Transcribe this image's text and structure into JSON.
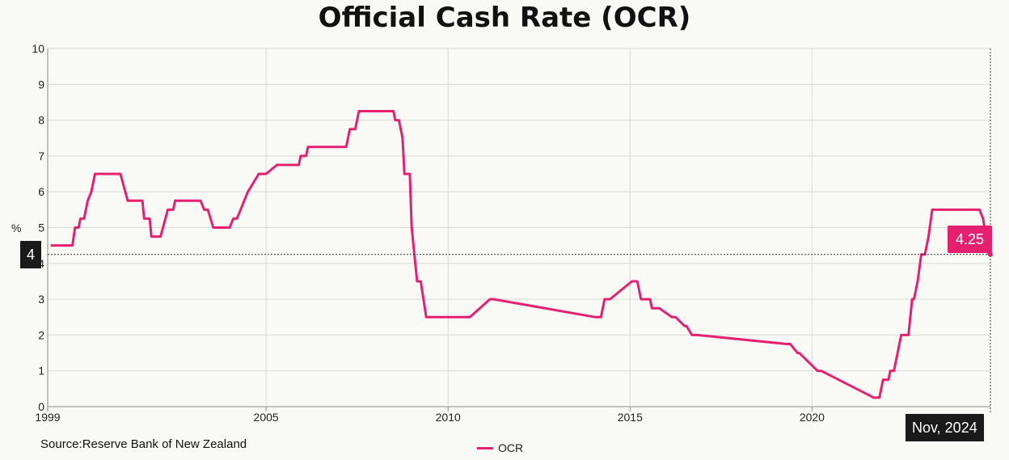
{
  "title": "Official Cash Rate (OCR)",
  "source": "Source:Reserve Bank of New Zealand",
  "colors": {
    "series": "#e4206f",
    "grid": "#d9d9d9",
    "axis": "#888888",
    "tooltip_bg": "#1a1a1a"
  },
  "crosshair": {
    "y_label": "4",
    "x_label": "Nov, 2024",
    "value_label": "4.25",
    "value": 4.25
  },
  "chart_data": {
    "type": "line",
    "title": "Official Cash Rate (OCR)",
    "xlabel": "",
    "ylabel": "%",
    "xlim": [
      1999.0,
      2024.9
    ],
    "ylim": [
      0,
      10
    ],
    "x_ticks": [
      1999,
      2005,
      2010,
      2015,
      2020
    ],
    "x_tick_labels": [
      "1999",
      "2005",
      "2010",
      "2015",
      "2020"
    ],
    "y_ticks": [
      0,
      1,
      2,
      3,
      4,
      5,
      6,
      7,
      8,
      9,
      10
    ],
    "y_tick_labels": [
      "0",
      "1",
      "2",
      "3",
      "4",
      "5",
      "6",
      "7",
      "8",
      "9",
      "10"
    ],
    "grid": true,
    "legend": "bottom-center",
    "series": [
      {
        "name": "OCR",
        "color": "#e4206f",
        "x": [
          1999.08,
          1999.68,
          1999.75,
          1999.85,
          1999.9,
          2000.0,
          2000.1,
          2000.2,
          2000.3,
          2001.0,
          2001.2,
          2001.3,
          2001.6,
          2001.65,
          2001.8,
          2001.85,
          2002.1,
          2002.3,
          2002.45,
          2002.5,
          2003.2,
          2003.3,
          2003.4,
          2003.55,
          2004.0,
          2004.1,
          2004.2,
          2004.3,
          2004.5,
          2004.8,
          2004.85,
          2005.0,
          2005.3,
          2005.45,
          2005.9,
          2005.95,
          2006.1,
          2006.15,
          2007.2,
          2007.3,
          2007.45,
          2007.55,
          2008.5,
          2008.55,
          2008.65,
          2008.75,
          2008.8,
          2008.95,
          2009.0,
          2009.15,
          2009.25,
          2009.4,
          2010.4,
          2010.6,
          2011.15,
          2011.25,
          2014.05,
          2014.2,
          2014.3,
          2014.45,
          2015.05,
          2015.2,
          2015.3,
          2015.55,
          2015.6,
          2015.7,
          2015.8,
          2016.15,
          2016.25,
          2016.5,
          2016.55,
          2016.7,
          2016.85,
          2019.3,
          2019.4,
          2019.6,
          2019.65,
          2020.15,
          2020.25,
          2021.7,
          2021.85,
          2021.95,
          2022.1,
          2022.15,
          2022.25,
          2022.35,
          2022.45,
          2022.55,
          2022.65,
          2022.75,
          2022.8,
          2022.9,
          2023.0,
          2023.1,
          2023.2,
          2023.3,
          2024.6,
          2024.7,
          2024.85
        ],
        "values": [
          4.5,
          4.5,
          5.0,
          5.0,
          5.25,
          5.25,
          5.75,
          6.0,
          6.5,
          6.5,
          5.75,
          5.75,
          5.75,
          5.25,
          5.25,
          4.75,
          4.75,
          5.5,
          5.5,
          5.75,
          5.75,
          5.5,
          5.5,
          5.0,
          5.0,
          5.25,
          5.25,
          5.5,
          6.0,
          6.5,
          6.5,
          6.5,
          6.75,
          6.75,
          6.75,
          7.0,
          7.0,
          7.25,
          7.25,
          7.75,
          7.75,
          8.25,
          8.25,
          8.0,
          8.0,
          7.5,
          6.5,
          6.5,
          5.0,
          3.5,
          3.5,
          2.5,
          2.5,
          2.5,
          3.0,
          3.0,
          2.5,
          2.5,
          3.0,
          3.0,
          3.5,
          3.5,
          3.0,
          3.0,
          2.75,
          2.75,
          2.75,
          2.5,
          2.5,
          2.25,
          2.25,
          2.0,
          2.0,
          1.75,
          1.75,
          1.5,
          1.5,
          1.0,
          1.0,
          0.25,
          0.25,
          0.75,
          0.75,
          1.0,
          1.0,
          1.5,
          2.0,
          2.0,
          2.0,
          3.0,
          3.0,
          3.5,
          4.25,
          4.25,
          4.75,
          5.5,
          5.5,
          5.25,
          4.25
        ]
      }
    ]
  },
  "legend_label": "OCR"
}
